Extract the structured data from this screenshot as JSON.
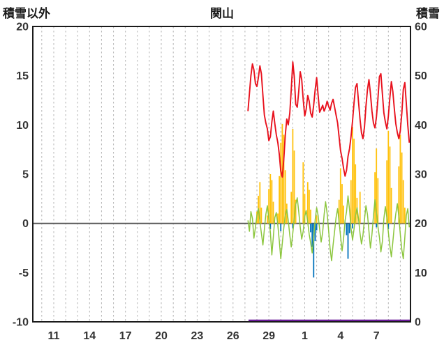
{
  "page": {
    "header": {
      "left_axis_label": "積雪以外",
      "title": "関山",
      "right_axis_label": "積雪"
    }
  },
  "chart_data": {
    "type": "line",
    "title": "関山",
    "left_axis_title": "積雪以外",
    "right_axis_title": "積雪",
    "x_range": [
      9.25,
      40.85
    ],
    "x_tick_days": [
      11,
      14,
      17,
      20,
      23,
      26,
      29,
      32,
      35,
      38
    ],
    "x_tick_labels": [
      "11",
      "14",
      "17",
      "20",
      "23",
      "26",
      "29",
      "1",
      "4",
      "7"
    ],
    "left_ylim": [
      -10,
      20
    ],
    "left_yticks": [
      20,
      15,
      10,
      5,
      0,
      -5,
      -10
    ],
    "right_ylim": [
      0,
      60
    ],
    "right_yticks": [
      60,
      50,
      40,
      30,
      20,
      10,
      0
    ],
    "grid": "vertical-dashed-daily",
    "legend": "none",
    "style": {
      "background": "#ffffff",
      "grid_color": "#b3b3b3",
      "zero_line_color": "#595959",
      "border_color": "#1a1a1a",
      "tick_color": "#333333"
    },
    "series": [
      {
        "name": "yellow-bars",
        "type": "bar",
        "axis": "left",
        "color": "#ffc20e",
        "points": [
          [
            28.0,
            1.2
          ],
          [
            28.125,
            2.8
          ],
          [
            28.25,
            4.2
          ],
          [
            28.375,
            1.6
          ],
          [
            28.875,
            0.8
          ],
          [
            29.0,
            3.5
          ],
          [
            29.125,
            5.0
          ],
          [
            29.25,
            4.4
          ],
          [
            29.375,
            2.2
          ],
          [
            29.75,
            1.0
          ],
          [
            29.875,
            4.8
          ],
          [
            30.0,
            8.2
          ],
          [
            30.125,
            10.1
          ],
          [
            30.25,
            9.0
          ],
          [
            30.375,
            5.4
          ],
          [
            30.5,
            2.0
          ],
          [
            30.875,
            3.2
          ],
          [
            31.0,
            9.6
          ],
          [
            31.125,
            7.4
          ],
          [
            31.25,
            2.4
          ],
          [
            31.875,
            6.2
          ],
          [
            32.0,
            3.0
          ],
          [
            32.25,
            4.2
          ],
          [
            32.375,
            3.4
          ],
          [
            32.5,
            1.4
          ],
          [
            33.0,
            0.8
          ],
          [
            34.875,
            2.4
          ],
          [
            35.0,
            5.6
          ],
          [
            35.125,
            4.0
          ],
          [
            35.25,
            1.8
          ],
          [
            35.875,
            4.4
          ],
          [
            36.0,
            9.8
          ],
          [
            36.125,
            8.6
          ],
          [
            36.25,
            6.0
          ],
          [
            36.375,
            2.6
          ],
          [
            36.625,
            3.2
          ],
          [
            37.875,
            5.2
          ],
          [
            38.0,
            7.6
          ],
          [
            38.125,
            4.6
          ],
          [
            38.875,
            6.4
          ],
          [
            39.0,
            9.4
          ],
          [
            39.125,
            7.8
          ],
          [
            39.25,
            3.6
          ],
          [
            39.875,
            5.8
          ],
          [
            40.0,
            9.0
          ],
          [
            40.125,
            7.2
          ],
          [
            40.25,
            4.4
          ],
          [
            40.375,
            1.6
          ]
        ]
      },
      {
        "name": "blue-bars",
        "type": "bar",
        "axis": "left",
        "color": "#0072bc",
        "points": [
          [
            29.125,
            -0.6
          ],
          [
            30.0,
            -0.8
          ],
          [
            31.0,
            -0.5
          ],
          [
            32.5,
            -0.9
          ],
          [
            32.625,
            -2.4
          ],
          [
            32.75,
            -5.5
          ],
          [
            32.875,
            -1.8
          ],
          [
            33.0,
            -0.7
          ],
          [
            35.5,
            -1.2
          ],
          [
            35.625,
            -3.6
          ],
          [
            35.75,
            -1.0
          ],
          [
            36.0,
            -0.5
          ],
          [
            38.0,
            -0.4
          ],
          [
            39.0,
            -0.6
          ]
        ]
      },
      {
        "name": "green-line",
        "type": "line",
        "axis": "left",
        "color": "#8cc63e",
        "t0": 27.25,
        "dt": 0.125,
        "values": [
          0.3,
          -0.8,
          1.2,
          0.5,
          -1.5,
          -0.4,
          0.8,
          1.5,
          0.2,
          -1.0,
          -2.2,
          -0.6,
          0.9,
          1.8,
          0.4,
          -0.9,
          -3.2,
          -1.4,
          0.6,
          1.1,
          -0.2,
          -1.8,
          -3.6,
          -2.0,
          -0.5,
          0.8,
          1.4,
          0.3,
          -1.2,
          -2.4,
          -1.0,
          0.5,
          1.9,
          2.6,
          1.2,
          -0.4,
          -1.6,
          -0.8,
          0.7,
          1.3,
          0.1,
          -1.1,
          -2.0,
          -3.0,
          -1.5,
          0.4,
          1.6,
          0.8,
          -0.6,
          -1.9,
          -0.9,
          0.9,
          2.2,
          1.0,
          -0.7,
          -2.6,
          -3.8,
          -2.2,
          -0.8,
          0.6,
          1.5,
          0.2,
          -1.3,
          -2.8,
          -1.6,
          0.3,
          1.2,
          2.8,
          1.4,
          -0.5,
          -1.7,
          -0.6,
          0.8,
          1.6,
          0.5,
          -1.0,
          -2.1,
          -1.2,
          0.4,
          1.8,
          0.9,
          -0.8,
          -2.5,
          -1.1,
          0.7,
          2.4,
          1.1,
          -0.3,
          -1.4,
          -2.9,
          -1.8,
          0.5,
          1.7,
          0.6,
          -0.9,
          -2.3,
          -3.4,
          -1.9,
          -0.2,
          1.0,
          2.0,
          0.7,
          -1.1,
          -2.7,
          -3.6,
          -1.4,
          0.8,
          1.5,
          -0.4
        ]
      },
      {
        "name": "red-line",
        "type": "line",
        "axis": "left",
        "color": "#e8111d",
        "t0": 27.25,
        "dt": 0.125,
        "values": [
          11.4,
          13.2,
          15.0,
          16.2,
          15.6,
          14.2,
          13.9,
          14.8,
          16.0,
          15.2,
          13.0,
          11.0,
          10.2,
          9.6,
          8.4,
          8.8,
          10.3,
          11.4,
          10.1,
          9.0,
          8.2,
          7.0,
          5.3,
          4.7,
          6.5,
          9.0,
          10.6,
          10.0,
          11.2,
          13.6,
          16.4,
          14.9,
          12.1,
          11.8,
          13.4,
          15.4,
          14.6,
          12.6,
          10.9,
          11.6,
          13.0,
          12.4,
          11.2,
          10.8,
          12.0,
          13.6,
          14.8,
          13.0,
          11.3,
          11.6,
          12.0,
          11.4,
          11.8,
          12.4,
          11.9,
          11.5,
          12.2,
          12.6,
          11.8,
          11.0,
          10.2,
          8.8,
          7.4,
          6.6,
          5.6,
          4.8,
          5.4,
          6.8,
          7.6,
          8.8,
          10.4,
          12.2,
          13.8,
          14.2,
          12.4,
          10.6,
          9.2,
          8.6,
          9.8,
          11.9,
          13.6,
          14.6,
          13.2,
          11.4,
          10.2,
          9.7,
          10.8,
          12.6,
          14.9,
          15.2,
          13.1,
          11.2,
          10.3,
          9.6,
          10.9,
          12.8,
          14.4,
          13.4,
          11.6,
          10.1,
          9.2,
          8.6,
          9.4,
          11.2,
          13.6,
          14.3,
          12.2,
          10.0,
          8.2
        ]
      },
      {
        "name": "purple-line",
        "type": "line",
        "axis": "right",
        "color": "#6a1b9a",
        "points": [
          [
            27.3,
            0
          ],
          [
            40.85,
            0
          ]
        ]
      }
    ]
  }
}
